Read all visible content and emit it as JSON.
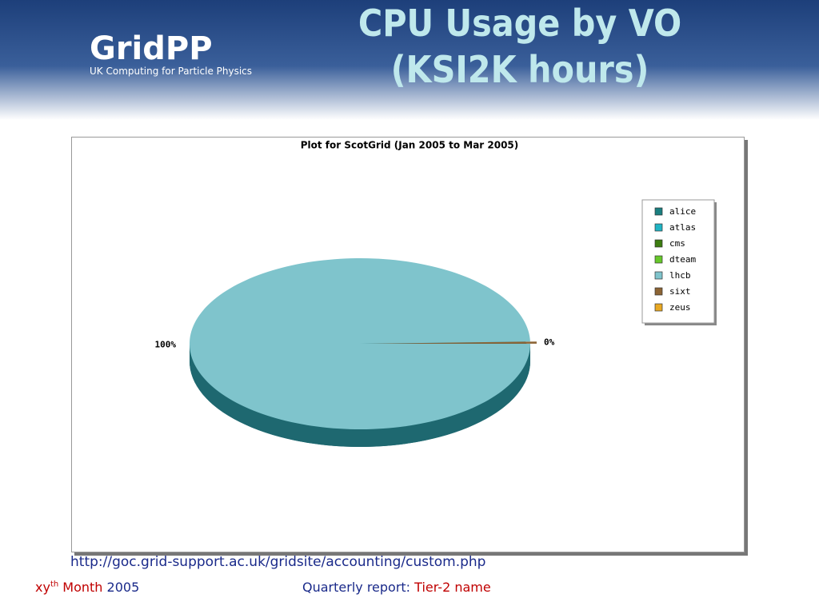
{
  "header": {
    "logo": "GridPP",
    "logo_subtitle": "UK Computing for Particle Physics",
    "title": "CPU Usage by VO (KSI2K hours)"
  },
  "chart_data": {
    "type": "pie",
    "title": "Plot for ScotGrid (Jan 2005 to Mar 2005)",
    "categories": [
      "alice",
      "atlas",
      "cms",
      "dteam",
      "lhcb",
      "sixt",
      "zeus"
    ],
    "values": [
      0,
      0,
      0,
      0,
      99.6,
      0.4,
      0
    ],
    "value_labels": [
      null,
      null,
      null,
      null,
      "100%",
      "0%",
      null
    ],
    "colors": [
      "#1a7f80",
      "#1fb4c4",
      "#3d7d10",
      "#66c82a",
      "#7fc4cc",
      "#8c6434",
      "#e8a822"
    ],
    "legend": "right"
  },
  "footer": {
    "url": "http://goc.grid-support.ac.uk/gridsite/accounting/custom.php",
    "date_prefix": "xy",
    "date_sup": "th",
    "date_month": "Month",
    "date_year": "2005",
    "report_label": "Quarterly report:",
    "report_name": "Tier-2 name"
  }
}
